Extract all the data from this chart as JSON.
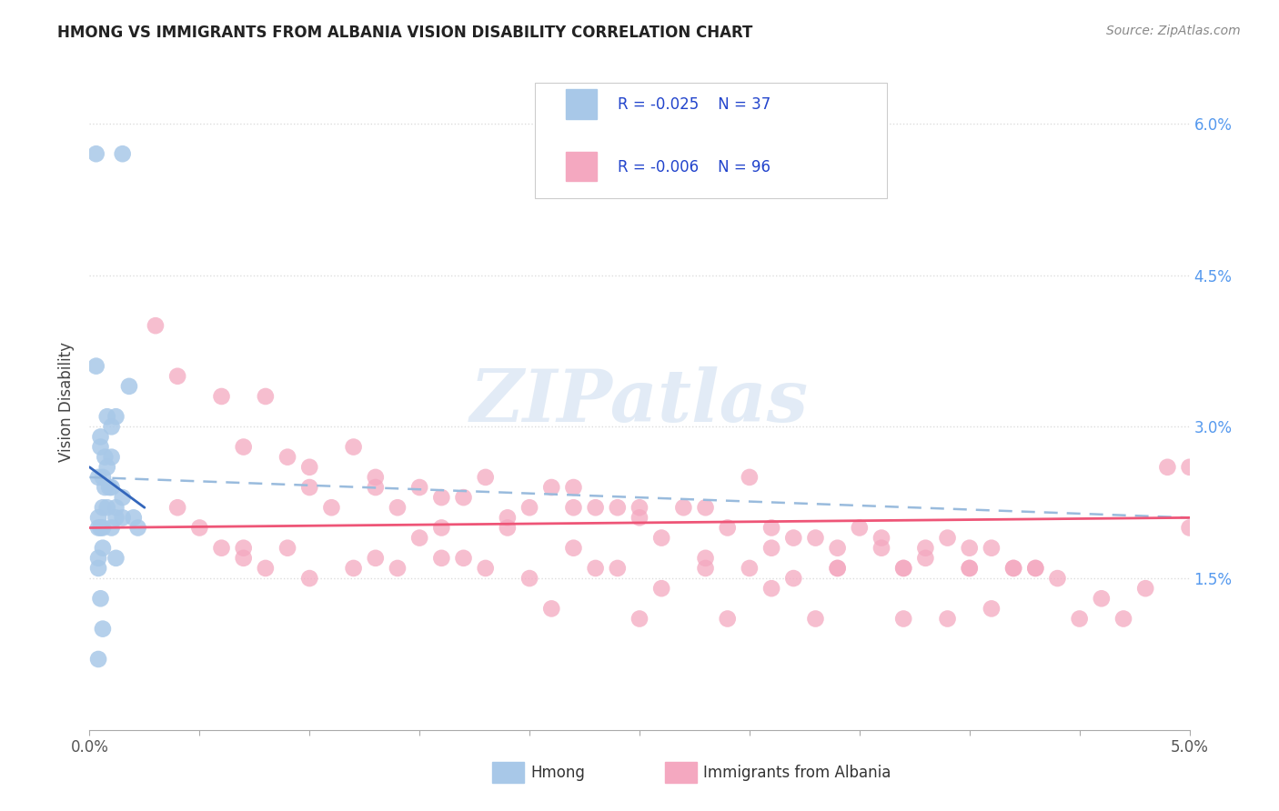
{
  "title": "HMONG VS IMMIGRANTS FROM ALBANIA VISION DISABILITY CORRELATION CHART",
  "source": "Source: ZipAtlas.com",
  "ylabel": "Vision Disability",
  "xlim": [
    0.0,
    0.05
  ],
  "ylim": [
    0.0,
    0.065
  ],
  "xticks": [
    0.0,
    0.005,
    0.01,
    0.015,
    0.02,
    0.025,
    0.03,
    0.035,
    0.04,
    0.045,
    0.05
  ],
  "yticks_right": [
    0.015,
    0.03,
    0.045,
    0.06
  ],
  "ytick_right_labels": [
    "1.5%",
    "3.0%",
    "4.5%",
    "6.0%"
  ],
  "hmong_color": "#a8c8e8",
  "albania_color": "#f4a8c0",
  "hmong_line_color": "#3366bb",
  "albania_line_color": "#ee5577",
  "dashed_line_color": "#99bbdd",
  "legend_R_hmong": "R = -0.025",
  "legend_N_hmong": "N = 37",
  "legend_R_albania": "R = -0.006",
  "legend_N_albania": "N = 96",
  "legend_label_hmong": "Hmong",
  "legend_label_albania": "Immigrants from Albania",
  "background_color": "#ffffff",
  "grid_color": "#cccccc",
  "watermark": "ZIPatlas",
  "hmong_x": [
    0.0003,
    0.0015,
    0.0003,
    0.0018,
    0.0008,
    0.0012,
    0.0005,
    0.001,
    0.0005,
    0.0007,
    0.001,
    0.0008,
    0.0006,
    0.0004,
    0.0007,
    0.0009,
    0.001,
    0.0015,
    0.0012,
    0.0006,
    0.0004,
    0.002,
    0.0008,
    0.0012,
    0.0015,
    0.0006,
    0.0004,
    0.0022,
    0.0005,
    0.001,
    0.0006,
    0.0004,
    0.0012,
    0.0004,
    0.0005,
    0.0006,
    0.0004
  ],
  "hmong_y": [
    0.057,
    0.057,
    0.036,
    0.034,
    0.031,
    0.031,
    0.029,
    0.03,
    0.028,
    0.027,
    0.027,
    0.026,
    0.025,
    0.025,
    0.024,
    0.024,
    0.024,
    0.023,
    0.022,
    0.022,
    0.021,
    0.021,
    0.022,
    0.021,
    0.021,
    0.02,
    0.02,
    0.02,
    0.02,
    0.02,
    0.018,
    0.017,
    0.017,
    0.016,
    0.013,
    0.01,
    0.007
  ],
  "albania_x": [
    0.003,
    0.004,
    0.006,
    0.007,
    0.008,
    0.009,
    0.01,
    0.011,
    0.012,
    0.013,
    0.014,
    0.015,
    0.016,
    0.017,
    0.018,
    0.019,
    0.02,
    0.021,
    0.022,
    0.023,
    0.024,
    0.025,
    0.026,
    0.027,
    0.028,
    0.029,
    0.03,
    0.031,
    0.032,
    0.033,
    0.034,
    0.035,
    0.036,
    0.037,
    0.038,
    0.039,
    0.04,
    0.041,
    0.042,
    0.043,
    0.007,
    0.01,
    0.013,
    0.016,
    0.019,
    0.022,
    0.025,
    0.028,
    0.031,
    0.034,
    0.037,
    0.04,
    0.043,
    0.004,
    0.008,
    0.012,
    0.016,
    0.02,
    0.024,
    0.028,
    0.032,
    0.036,
    0.04,
    0.044,
    0.048,
    0.006,
    0.01,
    0.014,
    0.018,
    0.022,
    0.026,
    0.03,
    0.034,
    0.038,
    0.042,
    0.046,
    0.005,
    0.009,
    0.013,
    0.017,
    0.021,
    0.025,
    0.029,
    0.033,
    0.037,
    0.041,
    0.045,
    0.049,
    0.007,
    0.015,
    0.023,
    0.031,
    0.039,
    0.047,
    0.05,
    0.05
  ],
  "albania_y": [
    0.04,
    0.035,
    0.033,
    0.028,
    0.033,
    0.027,
    0.026,
    0.022,
    0.028,
    0.025,
    0.022,
    0.024,
    0.023,
    0.023,
    0.025,
    0.021,
    0.022,
    0.024,
    0.024,
    0.022,
    0.022,
    0.022,
    0.019,
    0.022,
    0.022,
    0.02,
    0.025,
    0.02,
    0.019,
    0.019,
    0.018,
    0.02,
    0.019,
    0.016,
    0.018,
    0.019,
    0.018,
    0.018,
    0.016,
    0.016,
    0.018,
    0.024,
    0.024,
    0.02,
    0.02,
    0.022,
    0.021,
    0.016,
    0.018,
    0.016,
    0.016,
    0.016,
    0.016,
    0.022,
    0.016,
    0.016,
    0.017,
    0.015,
    0.016,
    0.017,
    0.015,
    0.018,
    0.016,
    0.015,
    0.014,
    0.018,
    0.015,
    0.016,
    0.016,
    0.018,
    0.014,
    0.016,
    0.016,
    0.017,
    0.016,
    0.013,
    0.02,
    0.018,
    0.017,
    0.017,
    0.012,
    0.011,
    0.011,
    0.011,
    0.011,
    0.012,
    0.011,
    0.026,
    0.017,
    0.019,
    0.016,
    0.014,
    0.011,
    0.011,
    0.026,
    0.02
  ],
  "hmong_line_x0": 0.0,
  "hmong_line_x1": 0.0025,
  "hmong_line_y0": 0.026,
  "hmong_line_y1": 0.022,
  "albania_line_x0": 0.0,
  "albania_line_x1": 0.05,
  "albania_line_y0": 0.02,
  "albania_line_y1": 0.021,
  "dashed_line_x0": 0.0,
  "dashed_line_x1": 0.05,
  "dashed_line_y0": 0.025,
  "dashed_line_y1": 0.021
}
